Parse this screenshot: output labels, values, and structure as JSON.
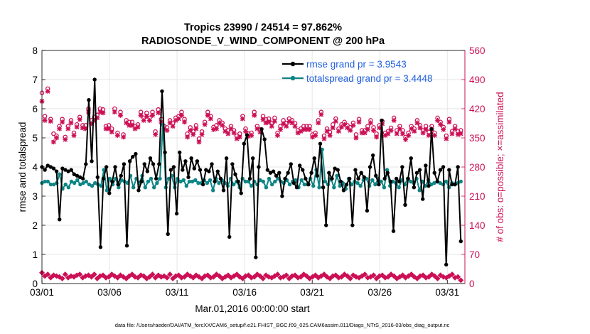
{
  "chart_data": {
    "type": "line",
    "title_line1": "Tropics 23990 / 24514 = 97.862%",
    "title_line2": "RADIOSONDE_V_WIND_COMPONENT @ 200 hPa",
    "xlabel": "Mar.01,2016 00:00:00 start",
    "ylabel_left": "rmse and totalspread",
    "ylabel_right": "# of obs: o=possible; ×=assimilated",
    "footnote": "data file: /Users/raeder/DAI/ATM_forcXX/CAM6_setup/f.e21.FHIST_BGC.f09_025.CAM6assim.011/Diags_NTrS_2016-03/obs_diag_output.nc",
    "xlim": [
      0,
      31.3
    ],
    "ylim_left": [
      0,
      8
    ],
    "ylim_right": [
      0,
      560
    ],
    "x_ticks": [
      {
        "value": 0,
        "label": "03/01"
      },
      {
        "value": 5,
        "label": "03/06"
      },
      {
        "value": 10,
        "label": "03/11"
      },
      {
        "value": 15,
        "label": "03/16"
      },
      {
        "value": 20,
        "label": "03/21"
      },
      {
        "value": 25,
        "label": "03/26"
      },
      {
        "value": 30,
        "label": "03/31"
      }
    ],
    "y_ticks_left": [
      "0",
      "1",
      "2",
      "3",
      "4",
      "5",
      "6",
      "7",
      "8"
    ],
    "y_ticks_right": [
      "0",
      "70",
      "140",
      "210",
      "280",
      "350",
      "420",
      "490",
      "560"
    ],
    "legend": [
      {
        "name": "rmse grand pr = 3.9543",
        "color": "#000000"
      },
      {
        "name": "totalspread grand pr = 3.4448",
        "color": "#0d8585"
      }
    ],
    "colors": {
      "rmse": "#000000",
      "spread": "#0d8585",
      "obs": "#cc1055",
      "legend_text": "#1f5fe0"
    },
    "series": [
      {
        "name": "rmse",
        "axis": "left",
        "values": [
          4.0,
          3.9,
          4.05,
          4.0,
          3.95,
          3.85,
          2.2,
          3.95,
          3.9,
          3.85,
          3.9,
          3.75,
          3.7,
          3.65,
          3.6,
          4.1,
          6.3,
          4.2,
          7.0,
          3.65,
          1.25,
          3.6,
          4.0,
          3.1,
          3.5,
          4.0,
          3.4,
          3.7,
          4.1,
          1.3,
          4.2,
          4.35,
          4.45,
          3.2,
          3.5,
          4.1,
          3.85,
          4.3,
          4.1,
          3.6,
          4.1,
          6.6,
          4.5,
          1.7,
          3.9,
          4.0,
          2.4,
          4.5,
          3.9,
          4.2,
          3.65,
          4.3,
          3.95,
          4.2,
          3.9,
          3.4,
          3.9,
          3.85,
          4.1,
          3.5,
          3.85,
          3.6,
          3.2,
          4.3,
          1.6,
          4.1,
          3.75,
          3.5,
          3.1,
          4.8,
          5.1,
          3.6,
          4.3,
          0.9,
          4.0,
          5.3,
          4.95,
          3.9,
          3.8,
          3.85,
          3.7,
          3.8,
          3.0,
          3.6,
          3.8,
          4.1,
          3.45,
          3.3,
          4.05,
          3.9,
          3.6,
          3.4,
          3.8,
          4.3,
          3.7,
          4.8,
          3.3,
          2.0,
          3.8,
          3.6,
          3.95,
          3.9,
          3.5,
          3.2,
          3.4,
          3.6,
          2.0,
          3.9,
          3.6,
          3.8,
          3.65,
          2.5,
          4.0,
          4.4,
          3.7,
          3.4,
          5.6,
          3.6,
          3.8,
          3.5,
          1.8,
          3.6,
          3.5,
          4.0,
          2.7,
          3.6,
          4.3,
          3.3,
          3.8,
          3.9,
          2.9,
          4.05,
          3.35,
          5.3,
          3.8,
          3.5,
          3.9,
          4.0,
          0.65,
          3.9,
          3.4,
          3.4,
          4.0,
          1.45
        ]
      },
      {
        "name": "totalspread",
        "axis": "left",
        "values": [
          3.45,
          3.5,
          3.5,
          3.4,
          3.4,
          3.45,
          3.75,
          3.25,
          3.4,
          3.3,
          3.5,
          3.45,
          3.55,
          3.4,
          3.45,
          3.5,
          3.4,
          3.35,
          3.45,
          3.4,
          3.35,
          3.9,
          3.2,
          3.6,
          3.4,
          3.6,
          3.3,
          3.55,
          3.5,
          3.45,
          3.7,
          3.3,
          3.6,
          3.45,
          3.7,
          3.3,
          3.5,
          3.6,
          3.3,
          3.45,
          3.6,
          5.45,
          3.3,
          3.6,
          3.7,
          3.3,
          3.6,
          3.5,
          3.55,
          3.35,
          3.5,
          3.5,
          3.55,
          3.45,
          3.45,
          3.55,
          3.45,
          3.55,
          3.2,
          3.6,
          3.45,
          3.55,
          3.45,
          3.35,
          3.6,
          3.4,
          3.5,
          3.3,
          3.6,
          3.5,
          3.5,
          3.35,
          3.5,
          3.4,
          3.55,
          3.5,
          3.3,
          3.6,
          3.4,
          3.5,
          3.6,
          3.5,
          3.45,
          3.55,
          3.4,
          3.5,
          3.55,
          3.3,
          3.55,
          3.4,
          3.4,
          3.6,
          3.35,
          3.9,
          3.3,
          4.6,
          3.5,
          3.4,
          3.6,
          3.3,
          3.7,
          3.35,
          3.45,
          3.25,
          3.6,
          3.4,
          3.5,
          3.45,
          3.35,
          3.55,
          3.6,
          3.35,
          3.55,
          3.4,
          3.6,
          3.5,
          3.3,
          3.9,
          3.35,
          3.5,
          3.45,
          3.3,
          3.55,
          3.4,
          3.6,
          3.5,
          3.45,
          3.6,
          3.2,
          3.5,
          3.35,
          3.55,
          3.4,
          3.45,
          3.5,
          3.45,
          3.4,
          3.5,
          3.3,
          3.45,
          3.4,
          3.45,
          3.5
        ]
      },
      {
        "name": "obs_possible",
        "axis": "right",
        "marker": "o",
        "values": [
          458,
          402,
          468,
          395,
          360,
          355,
          378,
          395,
          352,
          378,
          392,
          362,
          382,
          400,
          380,
          380,
          420,
          392,
          400,
          405,
          420,
          418,
          378,
          380,
          372,
          420,
          362,
          412,
          358,
          392,
          388,
          388,
          378,
          382,
          412,
          398,
          410,
          398,
          412,
          365,
          418,
          395,
          378,
          375,
          392,
          385,
          398,
          402,
          412,
          395,
          360,
          375,
          366,
          380,
          348,
          365,
          388,
          412,
          402,
          376,
          380,
          392,
          386,
          372,
          368,
          378,
          368,
          355,
          360,
          402,
          372,
          360,
          362,
          412,
          378,
          370,
          402,
          394,
          396,
          386,
          398,
          362,
          378,
          392,
          385,
          396,
          392,
          385,
          368,
          372,
          378,
          378,
          378,
          358,
          362,
          392,
          412,
          355,
          372,
          364,
          382,
          396,
          372,
          382,
          388,
          380,
          375,
          386,
          358,
          395,
          368,
          368,
          378,
          392,
          375,
          360,
          380,
          390,
          362,
          366,
          374,
          398,
          368,
          378,
          368,
          352,
          362,
          378,
          372,
          392,
          380,
          368,
          378,
          364,
          378,
          362,
          398,
          388,
          376,
          355,
          395,
          366,
          378,
          366,
          368
        ]
      },
      {
        "name": "obs_assimilated",
        "axis": "right",
        "marker": "x",
        "values": [
          438,
          392,
          462,
          390,
          340,
          350,
          372,
          388,
          346,
          372,
          386,
          356,
          376,
          394,
          374,
          372,
          412,
          384,
          392,
          398,
          412,
          410,
          372,
          372,
          364,
          412,
          356,
          404,
          352,
          386,
          380,
          380,
          372,
          376,
          404,
          392,
          402,
          392,
          404,
          358,
          410,
          388,
          372,
          368,
          386,
          378,
          392,
          396,
          404,
          388,
          352,
          368,
          358,
          372,
          340,
          358,
          382,
          404,
          396,
          370,
          372,
          386,
          380,
          366,
          360,
          372,
          362,
          348,
          352,
          396,
          366,
          354,
          356,
          404,
          372,
          364,
          394,
          386,
          388,
          378,
          390,
          356,
          370,
          384,
          378,
          390,
          386,
          378,
          362,
          366,
          370,
          370,
          370,
          352,
          356,
          386,
          406,
          348,
          366,
          356,
          374,
          390,
          366,
          376,
          382,
          374,
          368,
          380,
          350,
          388,
          362,
          362,
          370,
          386,
          368,
          352,
          374,
          384,
          356,
          360,
          368,
          392,
          360,
          372,
          360,
          346,
          356,
          372,
          366,
          386,
          374,
          362,
          370,
          356,
          372,
          356,
          392,
          382,
          370,
          348,
          388,
          360,
          372,
          358,
          360
        ]
      },
      {
        "name": "obs_bottom",
        "axis": "right",
        "marker": "diamond",
        "values": [
          26,
          18,
          22,
          14,
          20,
          18,
          16,
          12,
          22,
          14,
          18,
          16,
          20,
          22,
          14,
          18,
          20,
          16,
          22,
          12,
          18,
          20,
          14,
          16,
          22,
          18,
          14,
          20,
          16,
          12,
          18,
          22,
          16,
          14,
          20,
          18,
          12,
          16,
          22,
          14,
          20,
          16,
          18,
          14,
          22,
          12,
          18,
          20,
          14,
          16,
          22,
          18,
          14,
          20,
          16,
          12,
          18,
          20,
          14,
          16,
          22,
          18,
          12,
          16,
          20,
          14,
          18,
          22,
          16,
          12,
          18,
          20,
          14,
          16,
          22,
          18,
          12,
          20,
          16,
          14,
          18,
          22,
          14,
          16,
          20,
          12,
          18,
          20,
          14,
          16,
          22,
          18,
          12,
          16,
          20,
          14,
          18,
          22,
          16,
          12,
          18,
          20,
          14,
          16,
          22,
          18,
          12,
          20,
          16,
          14,
          18,
          22,
          14,
          16,
          20,
          12,
          18,
          20,
          14,
          16,
          22,
          18,
          12,
          16,
          20,
          14,
          18,
          22,
          16,
          12,
          18,
          20,
          14,
          16,
          22,
          18,
          12,
          20,
          16,
          14,
          18,
          22,
          14,
          16,
          8
        ]
      }
    ]
  }
}
